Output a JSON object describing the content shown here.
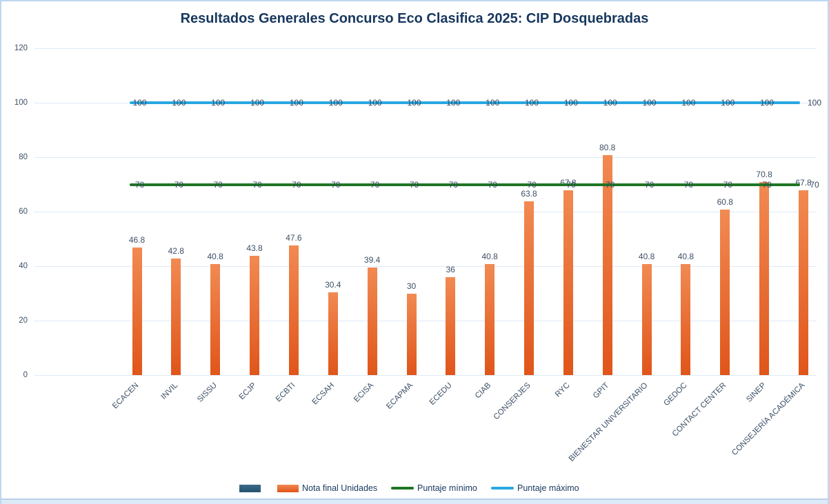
{
  "title": "Resultados Generales Concurso Eco Clasifica 2025: CIP Dosquebradas",
  "colors": {
    "bar_orange_top": "#F18A52",
    "bar_orange_bottom": "#E0551A",
    "phantom_series_top": "#3A6A88",
    "phantom_series_bottom": "#24536F",
    "min_line_green": "#1F7524",
    "max_line_blue": "#29A8E0",
    "title_text": "#17375E",
    "label_text": "#3C4F66",
    "gridline": "#DEEAF6",
    "border": "#BDD7EE"
  },
  "chart_data": {
    "type": "bar",
    "title": "Resultados Generales Concurso Eco Clasifica 2025: CIP Dosquebradas",
    "categories": [
      "ECACEN",
      "INVIL",
      "SISSU",
      "ECJP",
      "ECBTI",
      "ECSAH",
      "ECISA",
      "ECAPMA",
      "ECEDU",
      "CIAB",
      "CONSERJES",
      "RYC",
      "GPIT",
      "BIENESTAR UNIVERSITARIO",
      "GEDOC",
      "CONTACT CENTER",
      "SINEP",
      "CONSEJERÍA ACADÉMICA"
    ],
    "series": [
      {
        "name": "",
        "type": "bar",
        "color": "#2E5F7E",
        "values": []
      },
      {
        "name": "Nota final Unidades",
        "type": "bar",
        "color": "#ED6E2D",
        "values": [
          46.8,
          42.8,
          40.8,
          43.8,
          47.6,
          30.4,
          39.4,
          30,
          36,
          40.8,
          63.8,
          67.8,
          80.8,
          40.8,
          40.8,
          60.8,
          70.8,
          67.8
        ]
      },
      {
        "name": "Puntaje mínimo",
        "type": "line",
        "color": "#1F7524",
        "constant_value": 70,
        "point_labels": true
      },
      {
        "name": "Puntaje máximo",
        "type": "line",
        "color": "#29A8E0",
        "constant_value": 100,
        "point_labels": true
      }
    ],
    "xlabel": "",
    "ylabel": "",
    "y_axis": {
      "min": 0,
      "max": 120,
      "step": 20,
      "ticks": [
        120,
        100,
        80,
        60,
        40,
        20,
        0
      ]
    },
    "grid": true,
    "legend_position": "bottom",
    "data_labels": true
  }
}
